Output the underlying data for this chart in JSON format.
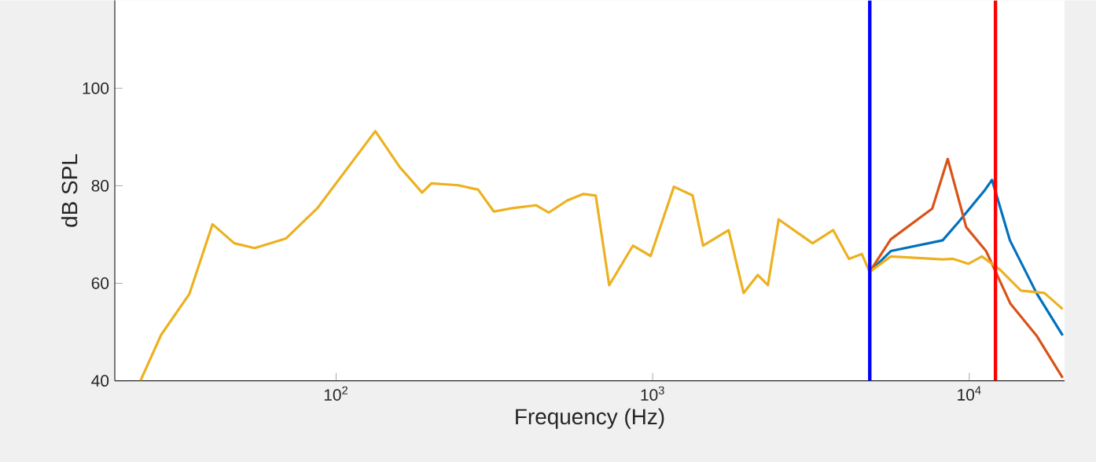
{
  "chart_data": {
    "type": "line",
    "xlabel": "Frequency (Hz)",
    "ylabel": "dB SPL",
    "log": "x",
    "xlim": [
      20,
      20000
    ],
    "ylim": [
      40,
      118
    ],
    "xticks": [
      {
        "value": 100,
        "label": "10$^{2}$"
      },
      {
        "value": 1000,
        "label": "10$^{3}$"
      },
      {
        "value": 10000,
        "label": "10$^{4}$"
      }
    ],
    "yticks": [
      40,
      60,
      80,
      100
    ],
    "ref_lines": [
      {
        "axis": "x",
        "value": 4850,
        "color": "#0000ff"
      },
      {
        "axis": "x",
        "value": 12100,
        "color": "#ff0000"
      }
    ],
    "series": [
      {
        "color": "#0072bd",
        "x": [
          4842,
          5650,
          8240,
          9230,
          11170,
          11800,
          13440,
          16300,
          19730
        ],
        "values": [
          62.3,
          66.6,
          68.8,
          72.5,
          79,
          81.2,
          68.8,
          58,
          49.3
        ]
      },
      {
        "color": "#d95319",
        "x": [
          4842,
          5650,
          7640,
          8550,
          9780,
          11300,
          13490,
          16300,
          19730
        ],
        "values": [
          62.3,
          69,
          75.3,
          85.5,
          71.5,
          66.6,
          55.8,
          49.3,
          40.6
        ]
      },
      {
        "color": "#edb120",
        "x": [
          24.1,
          28,
          34.4,
          40.7,
          47.7,
          55.3,
          69.5,
          87.3,
          133,
          159,
          187,
          200,
          243,
          281,
          315,
          361,
          428,
          470,
          538,
          603,
          661,
          729,
          866,
          985,
          1167,
          1337,
          1443,
          1738,
          1937,
          2147,
          2312,
          2500,
          3199,
          3716,
          4169,
          4581,
          4842,
          5650,
          8240,
          8890,
          9950,
          10960,
          12500,
          14560,
          17270,
          19730
        ],
        "values": [
          40,
          49.4,
          57.8,
          72.1,
          68.2,
          67.2,
          69.2,
          75.4,
          91.2,
          83.8,
          78.6,
          80.5,
          80.1,
          79.2,
          74.7,
          75.4,
          76,
          74.5,
          77,
          78.3,
          78,
          59.6,
          67.7,
          65.6,
          79.8,
          78,
          67.7,
          70.9,
          58,
          61.7,
          59.6,
          73.1,
          68.2,
          70.9,
          65,
          66,
          62.3,
          65.5,
          64.9,
          65,
          64,
          65.5,
          62.8,
          58.5,
          58,
          54.7
        ]
      }
    ]
  }
}
